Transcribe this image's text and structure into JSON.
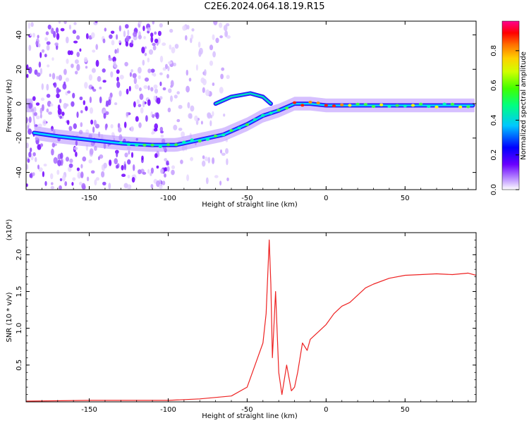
{
  "figure_title": "C2E6.2024.064.18.19.R15",
  "colors": {
    "snr_line": "#ee2222",
    "axis": "#000000"
  },
  "chart_data": [
    {
      "type": "heatmap",
      "title": "C2E6.2024.064.18.19.R15",
      "xlabel": "Height of straight line (km)",
      "ylabel": "Frequency (Hz)",
      "xlim": [
        -190,
        95
      ],
      "ylim": [
        -50,
        48
      ],
      "x_ticks": [
        -150,
        -100,
        -50,
        0,
        50
      ],
      "y_ticks": [
        -40,
        -20,
        0,
        20,
        40
      ],
      "colorbar": {
        "label": "Normalized spectral amplitude",
        "range": [
          0.0,
          0.97
        ],
        "ticks": [
          "0.0",
          "0.2",
          "0.4",
          "0.6",
          "0.8"
        ],
        "colormap": "rainbow-purple-to-red"
      },
      "ridge": [
        {
          "x": -185,
          "y": -17
        },
        {
          "x": -170,
          "y": -19
        },
        {
          "x": -150,
          "y": -21
        },
        {
          "x": -130,
          "y": -23
        },
        {
          "x": -110,
          "y": -24
        },
        {
          "x": -95,
          "y": -24
        },
        {
          "x": -80,
          "y": -21
        },
        {
          "x": -65,
          "y": -18
        },
        {
          "x": -50,
          "y": -12
        },
        {
          "x": -40,
          "y": -7
        },
        {
          "x": -30,
          "y": -4
        },
        {
          "x": -20,
          "y": 0
        },
        {
          "x": -10,
          "y": 0
        },
        {
          "x": 0,
          "y": -1
        },
        {
          "x": 20,
          "y": -1
        },
        {
          "x": 50,
          "y": -1
        },
        {
          "x": 93,
          "y": -1
        }
      ],
      "branch": [
        {
          "x": -70,
          "y": 0
        },
        {
          "x": -60,
          "y": 4
        },
        {
          "x": -48,
          "y": 6
        },
        {
          "x": -40,
          "y": 4
        },
        {
          "x": -35,
          "y": 0
        }
      ]
    },
    {
      "type": "line",
      "xlabel": "Height of straight line (km)",
      "ylabel": "SNR (10 * v/v)",
      "yscale_note": "(x10⁴)",
      "xlim": [
        -190,
        95
      ],
      "ylim": [
        0,
        2.3
      ],
      "x_ticks": [
        -150,
        -100,
        -50,
        0,
        50
      ],
      "y_ticks": [
        0.5,
        1.0,
        1.5,
        2.0
      ],
      "series": [
        {
          "x": [
            -190,
            -150,
            -100,
            -80,
            -60,
            -50,
            -45,
            -40,
            -38,
            -36,
            -35,
            -34,
            -32,
            -30,
            -28,
            -25,
            -22,
            -20,
            -18,
            -15,
            -12,
            -10,
            -5,
            0,
            5,
            10,
            15,
            20,
            25,
            30,
            40,
            50,
            60,
            70,
            80,
            90,
            95
          ],
          "y": [
            0.01,
            0.02,
            0.02,
            0.04,
            0.08,
            0.2,
            0.5,
            0.8,
            1.2,
            2.2,
            1.6,
            0.6,
            1.5,
            0.4,
            0.1,
            0.5,
            0.15,
            0.2,
            0.4,
            0.8,
            0.7,
            0.85,
            0.95,
            1.05,
            1.2,
            1.3,
            1.35,
            1.45,
            1.55,
            1.6,
            1.68,
            1.72,
            1.73,
            1.74,
            1.73,
            1.75,
            1.72
          ]
        }
      ]
    }
  ]
}
